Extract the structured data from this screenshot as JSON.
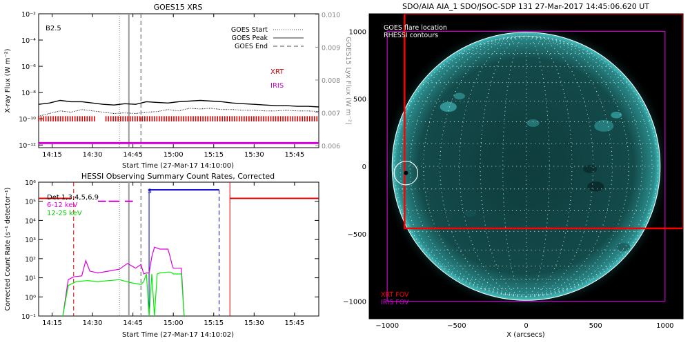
{
  "chart_data": [
    {
      "type": "line",
      "title": "GOES15 XRS",
      "xlabel": "Start Time (27-Mar-17 14:10:00)",
      "ylabel": "X-ray Flux (W m⁻²)",
      "y2label": "GOES15 Lyx Flux (W m⁻²)",
      "x_ticks": [
        "14:15",
        "14:30",
        "14:45",
        "15:00",
        "15:15",
        "15:30",
        "15:45"
      ],
      "x_tick_minutes": [
        15,
        30,
        45,
        60,
        75,
        90,
        105
      ],
      "xlim_minutes": [
        10,
        114
      ],
      "y_ticks": [
        "10⁻¹²",
        "10⁻¹⁰",
        "10⁻⁸",
        "10⁻⁶",
        "10⁻⁴",
        "10⁻²"
      ],
      "y_tick_exp": [
        -12,
        -10,
        -8,
        -6,
        -4,
        -2
      ],
      "ylim_exp": [
        -12.2,
        -2
      ],
      "y2_ticks": [
        "0.006",
        "0.007",
        "0.008",
        "0.009",
        "0.010"
      ],
      "annotation": "B2.5",
      "legend": [
        {
          "label": "GOES Start",
          "style": "dotted"
        },
        {
          "label": "GOES Peak",
          "style": "solid"
        },
        {
          "label": "GOES End",
          "style": "dashed"
        }
      ],
      "vlines_minutes": {
        "start": 40,
        "peak": 43.5,
        "end": 48
      },
      "series": [
        {
          "name": "",
          "color": "#000000",
          "style": "solid",
          "x": [
            10,
            14,
            18,
            22,
            26,
            30,
            34,
            38,
            42,
            46,
            50,
            54,
            58,
            62,
            66,
            70,
            74,
            78,
            82,
            86,
            90,
            94,
            98,
            102,
            106,
            110,
            114
          ],
          "y_exp": [
            -8.9,
            -8.8,
            -8.6,
            -8.7,
            -8.7,
            -8.8,
            -8.9,
            -8.95,
            -8.85,
            -8.9,
            -8.7,
            -8.75,
            -8.8,
            -8.7,
            -8.65,
            -8.6,
            -8.65,
            -8.7,
            -8.8,
            -8.85,
            -8.9,
            -8.95,
            -9.0,
            -9.0,
            -9.05,
            -9.05,
            -9.1
          ]
        },
        {
          "name": "",
          "color": "#000000",
          "style": "dotted",
          "x": [
            10,
            14,
            18,
            22,
            26,
            30,
            34,
            38,
            42,
            46,
            50,
            54,
            58,
            62,
            66,
            70,
            74,
            78,
            82,
            86,
            90,
            94,
            98,
            102,
            106,
            110,
            114
          ],
          "y_exp": [
            -9.8,
            -9.6,
            -9.4,
            -9.5,
            -9.3,
            -9.4,
            -9.5,
            -9.6,
            -9.55,
            -9.6,
            -9.5,
            -9.45,
            -9.3,
            -9.4,
            -9.2,
            -9.25,
            -9.2,
            -9.3,
            -9.3,
            -9.35,
            -9.35,
            -9.4,
            -9.4,
            -9.35,
            -9.4,
            -9.4,
            -9.45
          ]
        }
      ],
      "bar_labels": [
        {
          "label": "XRT",
          "color": "#cc0000"
        },
        {
          "label": "IRIS",
          "color": "#cc00cc"
        }
      ],
      "xrt_coverage_minutes": [
        [
          10,
          31
        ],
        [
          35,
          114
        ]
      ],
      "iris_coverage_minutes": [
        [
          10,
          114
        ]
      ]
    },
    {
      "type": "line",
      "title": "HESSI Observing Summary Count Rates, Corrected",
      "xlabel": "Start Time (27-Mar-17 14:10:02)",
      "ylabel": "Corrected Count Rate (s⁻¹ detector⁻¹)",
      "x_ticks": [
        "14:15",
        "14:30",
        "14:45",
        "15:00",
        "15:15",
        "15:30",
        "15:45"
      ],
      "x_tick_minutes": [
        15,
        30,
        45,
        60,
        75,
        90,
        105
      ],
      "xlim_minutes": [
        10,
        114
      ],
      "y_ticks": [
        "10⁻¹",
        "10⁰",
        "10¹",
        "10²",
        "10³",
        "10⁴",
        "10⁵",
        "10⁶"
      ],
      "y_tick_exp": [
        -1,
        0,
        1,
        2,
        3,
        4,
        5,
        6
      ],
      "ylim_exp": [
        -1,
        6
      ],
      "legend": [
        {
          "label": "Det 1,3,4,5,6,9",
          "color": "#000000"
        },
        {
          "label": "6-12 keV",
          "color": "#dd00dd"
        },
        {
          "label": "12-25 keV",
          "color": "#00cc00"
        }
      ],
      "marker_s": "S",
      "red_dashed_minute": 23,
      "gray_vlines_minutes": {
        "start": 40,
        "peak": 43.5,
        "end": 48
      },
      "series": [
        {
          "name": "6-12 keV",
          "color": "#dd00dd",
          "x": [
            19,
            21,
            23,
            26,
            27.5,
            29,
            32,
            36,
            40,
            43,
            46,
            48,
            49,
            50,
            51,
            52,
            53,
            55,
            58,
            59,
            59.5,
            60,
            62,
            63,
            64
          ],
          "y_exp": [
            -1,
            0.9,
            1.05,
            1.1,
            1.9,
            1.35,
            1.25,
            1.35,
            1.45,
            1.75,
            1.5,
            1.7,
            1.2,
            1.25,
            1.25,
            2.1,
            2.6,
            2.5,
            2.5,
            2.0,
            1.7,
            1.5,
            1.5,
            1.5,
            -1
          ]
        },
        {
          "name": "12-25 keV",
          "color": "#00ee00",
          "x": [
            19,
            21,
            24,
            28,
            32,
            36,
            40,
            44,
            48,
            49,
            50,
            51,
            52,
            53,
            54,
            55,
            58,
            59,
            60,
            62,
            63,
            64
          ],
          "y_exp": [
            -1,
            0.6,
            0.8,
            0.85,
            0.8,
            0.85,
            0.9,
            0.75,
            0.65,
            0.8,
            1.2,
            -1,
            1.2,
            -1,
            1.2,
            1.25,
            1.3,
            1.3,
            1.2,
            1.2,
            1.2,
            -1
          ]
        }
      ],
      "red_line_exp": 5.15,
      "red_segments_minutes": [
        [
          10,
          22
        ],
        [
          81,
          114
        ]
      ],
      "magenta_dash_minutes": [
        [
          32,
          35
        ],
        [
          36,
          40
        ],
        [
          42,
          45
        ]
      ],
      "magenta_dash_exp": 5.0,
      "blue_bracket_minutes": [
        51,
        77
      ],
      "blue_bracket_exp": 5.6,
      "red_vline_minute": 81
    },
    {
      "type": "scatter",
      "title": "SDO/AIA AIA_1 SDO/JSOC-SDP 131 27-Mar-2017 14:45:06.620 UT",
      "xlabel": "X (arcsecs)",
      "ylabel": "Y (arcsecs)",
      "x_ticks": [
        "−1000",
        "−500",
        "0",
        "500",
        "1000"
      ],
      "x_tick_vals": [
        -1000,
        -500,
        0,
        500,
        1000
      ],
      "y_ticks": [
        "−1000",
        "−500",
        "0",
        "500",
        "1000"
      ],
      "y_tick_vals": [
        -1000,
        -500,
        0,
        500,
        1000
      ],
      "xlim": [
        -1130,
        1130
      ],
      "ylim": [
        -1130,
        1130
      ],
      "legend_top": [
        "GOES flare location",
        "RHESSI contours"
      ],
      "legend_bottom": [
        {
          "label": "XRT FOV",
          "color": "#ff0000"
        },
        {
          "label": "IRIS FOV",
          "color": "#cc00cc"
        }
      ],
      "solar_radius": 965,
      "flare_location": [
        -865,
        -50
      ],
      "flare_circle_radius": 85,
      "xrt_fov": {
        "x0": -875,
        "x1": 1130,
        "y0": -460,
        "y1": 1130
      },
      "iris_fov": {
        "x0": -1000,
        "x1": 1000,
        "y0": -1000,
        "y1": 1000
      }
    }
  ]
}
